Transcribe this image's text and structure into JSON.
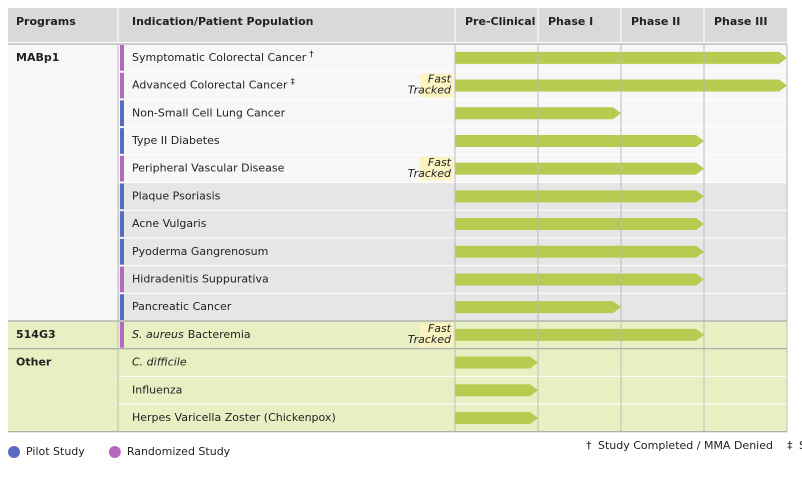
{
  "header": {
    "programs": "Programs",
    "indication": "Indication/Patient Population",
    "phases": [
      "Pre-Clinical",
      "Phase I",
      "Phase II",
      "Phase III"
    ]
  },
  "fast_track_label": [
    "Fast",
    "Tracked"
  ],
  "bar_color": "#b5cc50",
  "study_colors": {
    "pilot": "#5b6bc0",
    "randomized": "#b468c0"
  },
  "groups": [
    {
      "program": "MABp1",
      "rows": [
        {
          "indication": [
            {
              "text": "Symptomatic Colorectal Cancer"
            }
          ],
          "mark": "†",
          "study": "randomized",
          "progress": 4,
          "bg": "#f7f7f7"
        },
        {
          "indication": [
            {
              "text": "Advanced Colorectal Cancer"
            }
          ],
          "mark": "‡",
          "study": "randomized",
          "progress": 4,
          "fast": true,
          "bg": "#f7f7f7"
        },
        {
          "indication": [
            {
              "text": "Non-Small Cell Lung Cancer"
            }
          ],
          "study": "pilot",
          "progress": 2,
          "bg": "#f7f7f7"
        },
        {
          "indication": [
            {
              "text": "Type II Diabetes"
            }
          ],
          "study": "pilot",
          "progress": 3,
          "bg": "#f7f7f7"
        },
        {
          "indication": [
            {
              "text": "Peripheral Vascular Disease"
            }
          ],
          "study": "randomized",
          "progress": 3,
          "fast": true,
          "bg": "#f7f7f7"
        },
        {
          "indication": [
            {
              "text": "Plaque Psoriasis"
            }
          ],
          "study": "pilot",
          "progress": 3,
          "bg": "#e6e6e6"
        },
        {
          "indication": [
            {
              "text": "Acne Vulgaris"
            }
          ],
          "study": "pilot",
          "progress": 3,
          "bg": "#e6e6e6"
        },
        {
          "indication": [
            {
              "text": "Pyoderma Gangrenosum"
            }
          ],
          "study": "pilot",
          "progress": 3,
          "bg": "#e6e6e6"
        },
        {
          "indication": [
            {
              "text": "Hidradenitis Suppurativa"
            }
          ],
          "study": "randomized",
          "progress": 3,
          "bg": "#e6e6e6"
        },
        {
          "indication": [
            {
              "text": "Pancreatic Cancer"
            }
          ],
          "study": "pilot",
          "progress": 2,
          "bg": "#e6e6e6"
        }
      ]
    },
    {
      "program": "514G3",
      "bg": "#e8f0c3",
      "rows": [
        {
          "indication": [
            {
              "text": "S. aureus",
              "italic": true
            },
            {
              "text": "Bacteremia"
            }
          ],
          "study": "randomized",
          "progress": 3,
          "fast": true,
          "bg": "#e8f0c3"
        }
      ]
    },
    {
      "program": "Other",
      "bg": "#e8f0c3",
      "rows": [
        {
          "indication": [
            {
              "text": "C. difficile",
              "italic": true
            }
          ],
          "progress": 1,
          "bg": "#e8f0c3"
        },
        {
          "indication": [
            {
              "text": "Influenza"
            }
          ],
          "progress": 1,
          "bg": "#e8f0c3"
        },
        {
          "indication": [
            {
              "text": "Herpes Varicella Zoster (Chickenpox)"
            }
          ],
          "progress": 1,
          "bg": "#e8f0c3"
        }
      ]
    }
  ],
  "legend": [
    {
      "label": "Pilot Study",
      "study": "pilot"
    },
    {
      "label": "Randomized Study",
      "study": "randomized"
    }
  ],
  "footnotes": [
    {
      "symbol": "†",
      "text": "Study Completed / MMA Denied"
    },
    {
      "symbol": "‡",
      "text": "Study Discontinued"
    }
  ]
}
